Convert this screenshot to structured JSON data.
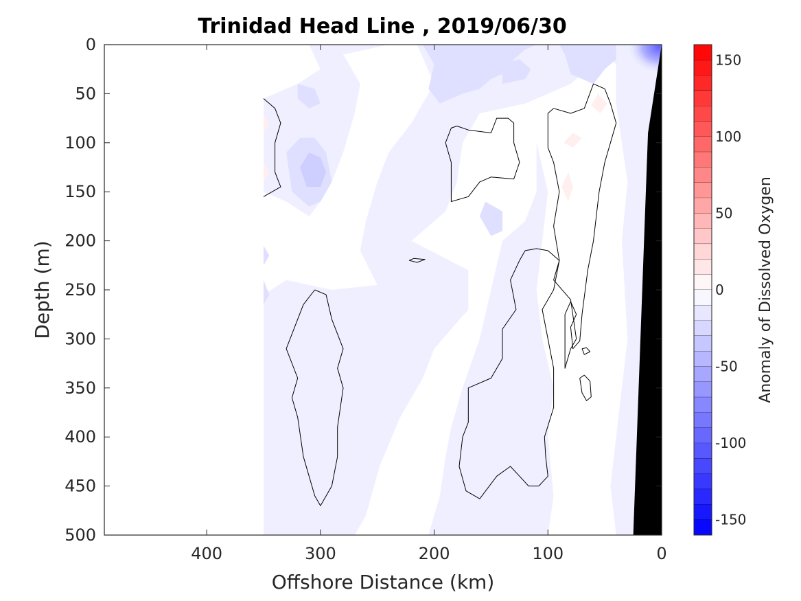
{
  "chart_data": {
    "type": "heatmap",
    "title": "Trinidad Head Line , 2019/06/30",
    "xlabel": "Offshore Distance (km)",
    "ylabel": "Depth (m)",
    "colorbar_label": "Anomaly of Dissolved Oxygen",
    "xlim": [
      490,
      0
    ],
    "ylim": [
      500,
      0
    ],
    "x_ticks": [
      400,
      300,
      200,
      100,
      0
    ],
    "x_tick_labels": [
      "400",
      "300",
      "200",
      "100",
      "0"
    ],
    "y_ticks": [
      0,
      50,
      100,
      150,
      200,
      250,
      300,
      350,
      400,
      450,
      500
    ],
    "y_tick_labels": [
      "0",
      "50",
      "100",
      "150",
      "200",
      "250",
      "300",
      "350",
      "400",
      "450",
      "500"
    ],
    "colorbar_range": [
      -160,
      160
    ],
    "colorbar_ticks": [
      150,
      100,
      50,
      0,
      -50,
      -100,
      -150
    ],
    "colorbar_tick_labels": [
      "150",
      "100",
      "50",
      "0",
      "-50",
      "-100",
      "-150"
    ],
    "colorbar_levels": 32,
    "colormap": {
      "low": "#0000ff",
      "mid": "#ffffff",
      "high": "#ff0000"
    },
    "bathymetry_color": "#000000",
    "data_extent_x_km": [
      350,
      0
    ],
    "field_regions": [
      {
        "level": -10,
        "polygon": [
          [
            350,
            0
          ],
          [
            0,
            0
          ],
          [
            0,
            500
          ],
          [
            350,
            500
          ]
        ]
      },
      {
        "level": 0,
        "polygon": [
          [
            350,
            0
          ],
          [
            310,
            0
          ],
          [
            300,
            25
          ],
          [
            320,
            40
          ],
          [
            350,
            55
          ]
        ]
      },
      {
        "level": 0,
        "polygon": [
          [
            280,
            10
          ],
          [
            240,
            0
          ],
          [
            215,
            0
          ],
          [
            200,
            40
          ],
          [
            220,
            80
          ],
          [
            240,
            110
          ],
          [
            250,
            140
          ],
          [
            260,
            180
          ],
          [
            265,
            210
          ],
          [
            250,
            245
          ],
          [
            290,
            250
          ],
          [
            330,
            240
          ],
          [
            350,
            255
          ],
          [
            350,
            150
          ],
          [
            330,
            160
          ],
          [
            310,
            175
          ],
          [
            300,
            160
          ],
          [
            290,
            140
          ],
          [
            280,
            110
          ],
          [
            270,
            70
          ],
          [
            265,
            40
          ]
        ]
      },
      {
        "level": 0,
        "polygon": [
          [
            220,
            200
          ],
          [
            170,
            230
          ],
          [
            170,
            270
          ],
          [
            185,
            290
          ],
          [
            200,
            310
          ],
          [
            210,
            340
          ],
          [
            230,
            380
          ],
          [
            248,
            430
          ],
          [
            260,
            480
          ],
          [
            270,
            500
          ],
          [
            205,
            500
          ],
          [
            195,
            460
          ],
          [
            190,
            420
          ],
          [
            185,
            390
          ],
          [
            175,
            350
          ],
          [
            160,
            300
          ],
          [
            150,
            250
          ],
          [
            140,
            200
          ],
          [
            120,
            180
          ],
          [
            110,
            150
          ],
          [
            110,
            100
          ],
          [
            120,
            60
          ],
          [
            160,
            70
          ],
          [
            175,
            100
          ],
          [
            180,
            140
          ],
          [
            190,
            170
          ]
        ]
      },
      {
        "level": 0,
        "polygon": [
          [
            120,
            60
          ],
          [
            80,
            40
          ],
          [
            70,
            30
          ],
          [
            65,
            15
          ],
          [
            55,
            5
          ],
          [
            40,
            20
          ],
          [
            40,
            60
          ],
          [
            30,
            140
          ],
          [
            35,
            200
          ],
          [
            30,
            300
          ],
          [
            40,
            400
          ],
          [
            45,
            450
          ],
          [
            40,
            500
          ],
          [
            100,
            500
          ],
          [
            95,
            460
          ],
          [
            100,
            400
          ],
          [
            95,
            350
          ],
          [
            105,
            300
          ],
          [
            110,
            250
          ],
          [
            105,
            200
          ],
          [
            100,
            150
          ],
          [
            110,
            100
          ]
        ]
      },
      {
        "level": -20,
        "polygon": [
          [
            90,
            0
          ],
          [
            85,
            10
          ],
          [
            80,
            30
          ],
          [
            60,
            40
          ],
          [
            50,
            25
          ],
          [
            40,
            15
          ],
          [
            40,
            0
          ]
        ]
      },
      {
        "level": -20,
        "polygon": [
          [
            210,
            0
          ],
          [
            200,
            20
          ],
          [
            205,
            45
          ],
          [
            195,
            60
          ],
          [
            175,
            50
          ],
          [
            160,
            45
          ],
          [
            150,
            35
          ],
          [
            140,
            30
          ],
          [
            130,
            15
          ],
          [
            120,
            5
          ],
          [
            110,
            0
          ]
        ]
      },
      {
        "level": -20,
        "polygon": [
          [
            140,
            40
          ],
          [
            120,
            35
          ],
          [
            115,
            25
          ],
          [
            125,
            15
          ],
          [
            140,
            20
          ]
        ]
      },
      {
        "level": -20,
        "polygon": [
          [
            320,
            40
          ],
          [
            305,
            45
          ],
          [
            300,
            60
          ],
          [
            310,
            65
          ],
          [
            320,
            55
          ]
        ]
      },
      {
        "level": -20,
        "polygon": [
          [
            318,
            95
          ],
          [
            330,
            110
          ],
          [
            325,
            150
          ],
          [
            310,
            165
          ],
          [
            300,
            160
          ],
          [
            290,
            140
          ],
          [
            295,
            110
          ],
          [
            305,
            95
          ]
        ]
      },
      {
        "level": -30,
        "polygon": [
          [
            310,
            110
          ],
          [
            318,
            125
          ],
          [
            312,
            145
          ],
          [
            300,
            145
          ],
          [
            295,
            130
          ],
          [
            300,
            115
          ]
        ]
      },
      {
        "level": -20,
        "polygon": [
          [
            155,
            160
          ],
          [
            160,
            175
          ],
          [
            150,
            195
          ],
          [
            140,
            190
          ],
          [
            140,
            170
          ]
        ]
      },
      {
        "level": -20,
        "polygon": [
          [
            350,
            205
          ],
          [
            345,
            215
          ],
          [
            350,
            225
          ]
        ]
      },
      {
        "level": -20,
        "polygon": [
          [
            350,
            240
          ],
          [
            345,
            255
          ],
          [
            350,
            265
          ]
        ]
      },
      {
        "level": 10,
        "polygon": [
          [
            350,
            70
          ],
          [
            345,
            80
          ],
          [
            350,
            90
          ]
        ]
      },
      {
        "level": 10,
        "polygon": [
          [
            350,
            120
          ],
          [
            345,
            130
          ],
          [
            350,
            140
          ]
        ]
      },
      {
        "level": 10,
        "polygon": [
          [
            78,
            90
          ],
          [
            70,
            95
          ],
          [
            78,
            105
          ],
          [
            86,
            100
          ]
        ]
      },
      {
        "level": 10,
        "polygon": [
          [
            56,
            50
          ],
          [
            48,
            60
          ],
          [
            54,
            70
          ],
          [
            62,
            62
          ]
        ]
      },
      {
        "level": 10,
        "polygon": [
          [
            82,
            130
          ],
          [
            78,
            145
          ],
          [
            82,
            160
          ],
          [
            88,
            145
          ]
        ]
      }
    ],
    "surface_anomaly": {
      "x": 2,
      "y": 2,
      "center_value": -100
    },
    "zero_contours": [
      [
        [
          350,
          55
        ],
        [
          340,
          65
        ],
        [
          335,
          80
        ],
        [
          340,
          100
        ],
        [
          340,
          130
        ],
        [
          335,
          145
        ],
        [
          350,
          155
        ]
      ],
      [
        [
          305,
          250
        ],
        [
          295,
          255
        ],
        [
          290,
          280
        ],
        [
          280,
          310
        ],
        [
          285,
          330
        ],
        [
          280,
          350
        ],
        [
          285,
          390
        ],
        [
          285,
          420
        ],
        [
          290,
          450
        ],
        [
          300,
          470
        ],
        [
          305,
          460
        ],
        [
          315,
          420
        ],
        [
          320,
          380
        ],
        [
          325,
          360
        ],
        [
          320,
          340
        ],
        [
          330,
          310
        ],
        [
          320,
          280
        ],
        [
          315,
          265
        ],
        [
          305,
          250
        ]
      ],
      [
        [
          180,
          83
        ],
        [
          185,
          85
        ],
        [
          190,
          100
        ],
        [
          185,
          120
        ],
        [
          185,
          160
        ],
        [
          170,
          155
        ],
        [
          160,
          140
        ],
        [
          150,
          135
        ],
        [
          130,
          137
        ],
        [
          125,
          120
        ],
        [
          130,
          100
        ],
        [
          130,
          80
        ],
        [
          135,
          75
        ],
        [
          145,
          75
        ],
        [
          150,
          90
        ],
        [
          170,
          87
        ],
        [
          180,
          83
        ]
      ],
      [
        [
          222,
          220
        ],
        [
          218,
          218
        ],
        [
          208,
          219
        ],
        [
          215,
          222
        ],
        [
          222,
          220
        ]
      ],
      [
        [
          120,
          210
        ],
        [
          125,
          220
        ],
        [
          133,
          240
        ],
        [
          128,
          270
        ],
        [
          140,
          290
        ],
        [
          140,
          320
        ],
        [
          150,
          340
        ],
        [
          170,
          350
        ],
        [
          170,
          385
        ],
        [
          175,
          400
        ],
        [
          178,
          430
        ],
        [
          172,
          455
        ],
        [
          160,
          463
        ],
        [
          145,
          440
        ],
        [
          133,
          430
        ],
        [
          125,
          440
        ],
        [
          117,
          450
        ],
        [
          108,
          450
        ],
        [
          100,
          440
        ],
        [
          102,
          420
        ],
        [
          103,
          400
        ],
        [
          95,
          370
        ],
        [
          95,
          330
        ],
        [
          100,
          300
        ],
        [
          105,
          270
        ],
        [
          95,
          250
        ],
        [
          90,
          220
        ],
        [
          100,
          210
        ],
        [
          110,
          208
        ],
        [
          120,
          210
        ]
      ],
      [
        [
          95,
          65
        ],
        [
          100,
          70
        ],
        [
          100,
          105
        ],
        [
          95,
          120
        ],
        [
          90,
          150
        ],
        [
          95,
          185
        ],
        [
          90,
          220
        ],
        [
          95,
          240
        ],
        [
          80,
          260
        ],
        [
          75,
          300
        ],
        [
          80,
          310
        ],
        [
          85,
          330
        ],
        [
          85,
          275
        ],
        [
          80,
          262
        ],
        [
          75,
          275
        ],
        [
          80,
          288
        ],
        [
          78,
          310
        ],
        [
          72,
          302
        ],
        [
          70,
          275
        ],
        [
          65,
          230
        ],
        [
          60,
          200
        ],
        [
          55,
          150
        ],
        [
          50,
          120
        ],
        [
          40,
          80
        ],
        [
          45,
          60
        ],
        [
          50,
          45
        ],
        [
          60,
          40
        ],
        [
          68,
          65
        ],
        [
          80,
          70
        ],
        [
          95,
          65
        ]
      ],
      [
        [
          70,
          310
        ],
        [
          68,
          316
        ],
        [
          63,
          313
        ],
        [
          66,
          309
        ],
        [
          70,
          310
        ]
      ],
      [
        [
          72,
          340
        ],
        [
          70,
          355
        ],
        [
          66,
          363
        ],
        [
          62,
          359
        ],
        [
          63,
          343
        ],
        [
          68,
          337
        ],
        [
          72,
          340
        ]
      ]
    ],
    "bathymetry_polygon": [
      [
        0,
        0
      ],
      [
        0,
        500
      ],
      [
        25,
        500
      ],
      [
        12,
        90
      ],
      [
        0,
        0
      ]
    ]
  }
}
